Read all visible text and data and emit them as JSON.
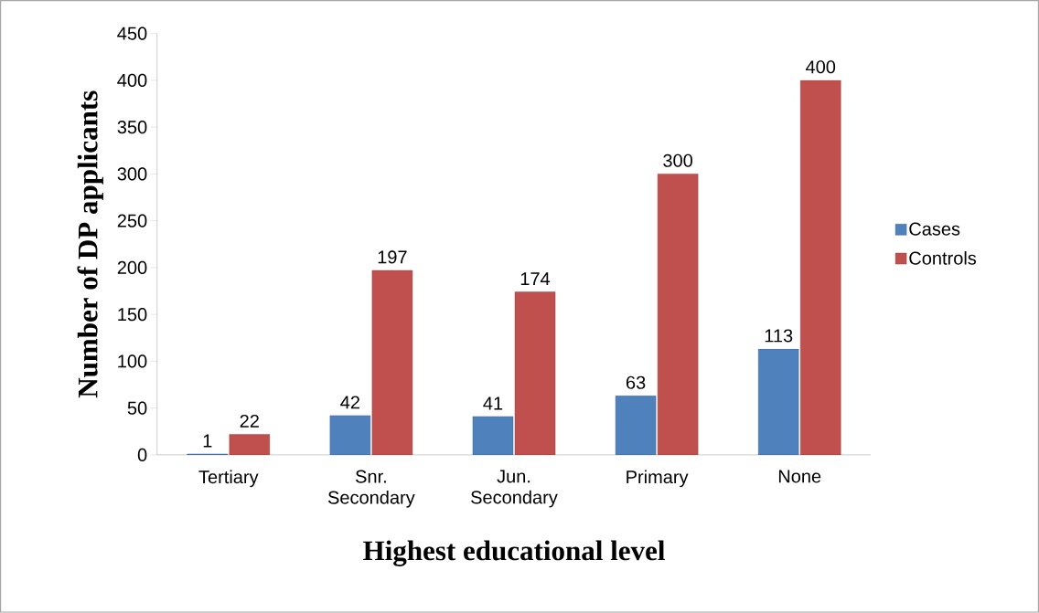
{
  "chart_data": {
    "type": "bar",
    "xlabel": "Highest educational level",
    "ylabel": "Number of DP applicants",
    "categories": [
      "Tertiary",
      "Snr. Secondary",
      "Jun. Secondary",
      "Primary",
      "None"
    ],
    "series": [
      {
        "name": "Cases",
        "color": "#4f81bd",
        "values": [
          1,
          42,
          41,
          63,
          113
        ]
      },
      {
        "name": "Controls",
        "color": "#c0504d",
        "values": [
          22,
          197,
          174,
          300,
          400
        ]
      }
    ],
    "ylim": [
      0,
      450
    ],
    "yticks": [
      0,
      50,
      100,
      150,
      200,
      250,
      300,
      350,
      400,
      450
    ],
    "data_labels": true,
    "grid": false,
    "legend": "right"
  }
}
